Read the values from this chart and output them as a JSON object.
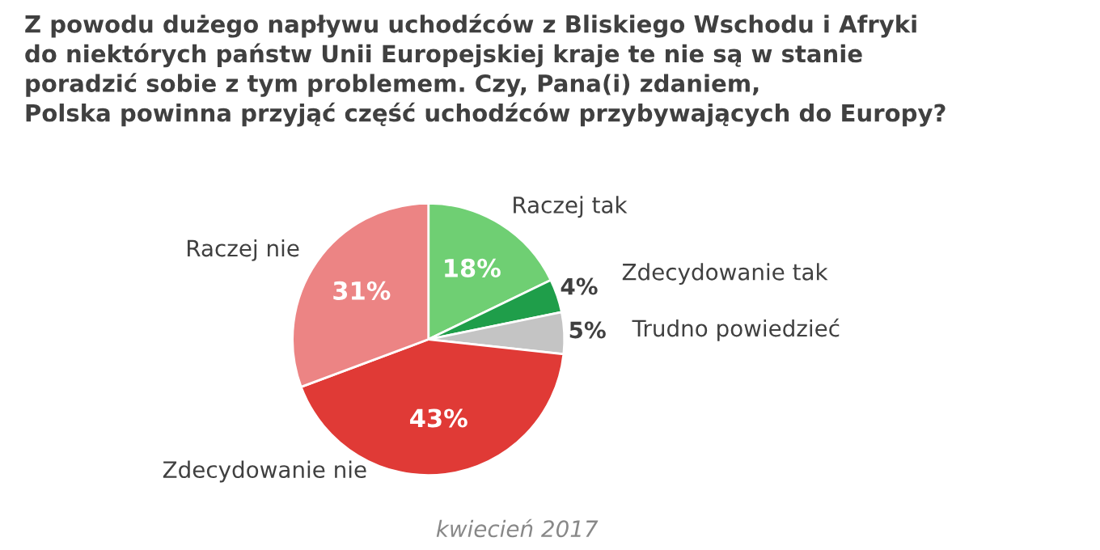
{
  "chart_data": {
    "type": "pie",
    "title": "Z powodu dużego napływu uchodźców z Bliskiego Wschodu i Afryki\ndo niektórych państw Unii Europejskiej kraje te nie są w stanie\nporadzić sobie z tym problemem. Czy, Pana(i) zdaniem,\nPolska powinna przyjąć część uchodźców przybywających do Europy?",
    "categories": [
      "Raczej tak",
      "Zdecydowanie tak",
      "Trudno powiedzieć",
      "Zdecydowanie nie",
      "Raczej nie"
    ],
    "values": [
      18,
      4,
      5,
      43,
      31
    ],
    "colors": [
      "#6fcf73",
      "#1f9e4a",
      "#c4c4c4",
      "#e03a36",
      "#ec8484"
    ],
    "value_labels": [
      "18%",
      "4%",
      "5%",
      "43%",
      "31%"
    ],
    "annotations": [
      "kwiecień 2017"
    ]
  }
}
